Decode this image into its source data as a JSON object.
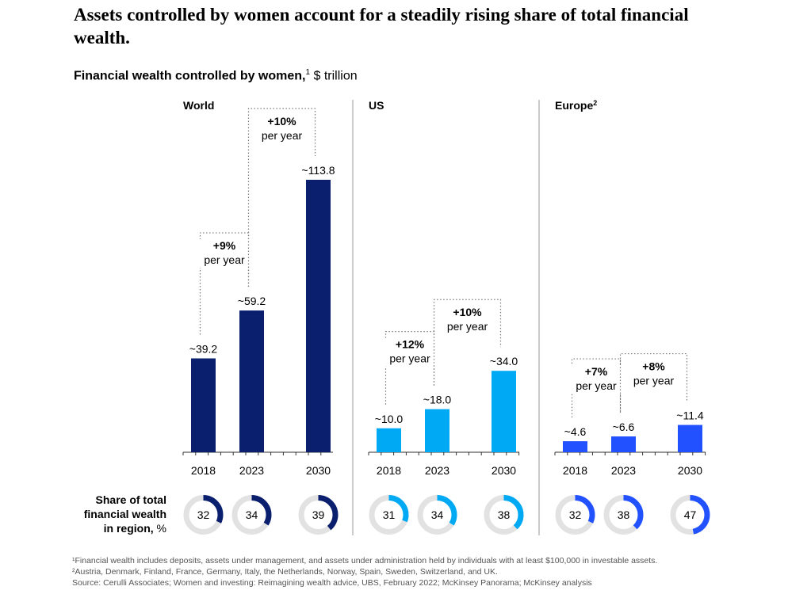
{
  "headline": "Assets controlled by women account for a steadily rising share of total financial wealth.",
  "subhead": {
    "bold": "Financial wealth controlled by women,",
    "sup": "1",
    "unit": " $ trillion"
  },
  "share_label": {
    "lines": [
      "Share of total",
      "financial wealth"
    ],
    "last_bold": "in region,",
    "last_unit": " %"
  },
  "footnotes": [
    "¹Financial wealth includes deposits, assets under management, and assets under administration held by individuals with at least $100,000 in investable assets.",
    "²Austria, Denmark, Finland, France, Germany, Italy, the Netherlands, Norway, Spain, Sweden, Switzerland, and UK.",
    " Source: Cerulli Associates; Women and investing: Reimagining wealth advice, UBS, February 2022; McKinsey Panorama; McKinsey analysis"
  ],
  "chart_data": {
    "type": "bar",
    "unit": "$ trillion",
    "categories": [
      "2018",
      "2023",
      "2030"
    ],
    "y_scale_max": 113.8,
    "panels": [
      {
        "title": "World",
        "sup": "",
        "color": "#0b1f6f",
        "values": [
          39.2,
          59.2,
          113.8
        ],
        "value_labels": [
          "~39.2",
          "~59.2",
          "~113.8"
        ],
        "growth": [
          {
            "from": 0,
            "to": 1,
            "rate": "+9%",
            "period": "per year"
          },
          {
            "from": 1,
            "to": 2,
            "rate": "+10%",
            "period": "per year"
          }
        ],
        "share": [
          32,
          34,
          39
        ]
      },
      {
        "title": "US",
        "sup": "",
        "color": "#00a9f4",
        "values": [
          10.0,
          18.0,
          34.0
        ],
        "value_labels": [
          "~10.0",
          "~18.0",
          "~34.0"
        ],
        "growth": [
          {
            "from": 0,
            "to": 1,
            "rate": "+12%",
            "period": "per year"
          },
          {
            "from": 1,
            "to": 2,
            "rate": "+10%",
            "period": "per year"
          }
        ],
        "share": [
          31,
          34,
          38
        ]
      },
      {
        "title": "Europe",
        "sup": "2",
        "color": "#2251ff",
        "values": [
          4.6,
          6.6,
          11.4
        ],
        "value_labels": [
          "~4.6",
          "~6.6",
          "~11.4"
        ],
        "growth": [
          {
            "from": 0,
            "to": 1,
            "rate": "+7%",
            "period": "per year"
          },
          {
            "from": 1,
            "to": 2,
            "rate": "+8%",
            "period": "per year"
          }
        ],
        "share": [
          32,
          38,
          47
        ]
      }
    ],
    "colors": {
      "donut_track": "#e2e2e2",
      "divider": "#9a9a9a",
      "dotted": "#7a7a7a"
    }
  }
}
